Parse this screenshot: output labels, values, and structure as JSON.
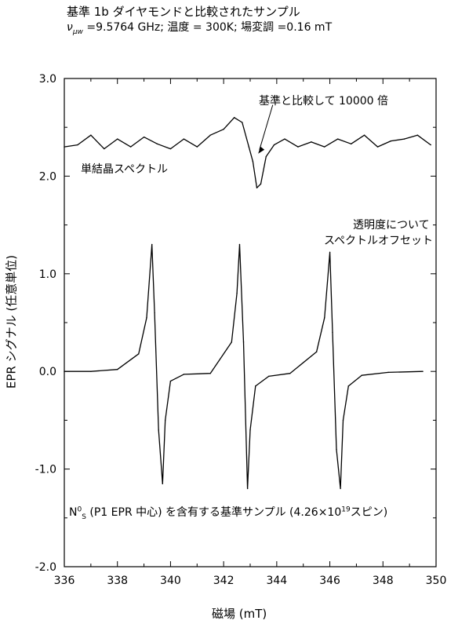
{
  "chart_data": {
    "type": "line",
    "title": "基準 1b ダイヤモンドと比較されたサンプル",
    "subtitle": "ν_μw =9.5764 GHz; 温度 = 300K; 場変調 =0.16 mT",
    "subtitle_symbol": "ν",
    "subtitle_sub": "μw",
    "subtitle_rest": " =9.5764 GHz; 温度 = 300K; 場変調 =0.16 mT",
    "xlabel": "磁場 (mT)",
    "ylabel": "EPR シグナル (任意単位)",
    "xlim": [
      336,
      350
    ],
    "ylim": [
      -2.0,
      3.0
    ],
    "x_ticks": [
      "336",
      "338",
      "340",
      "342",
      "344",
      "346",
      "348",
      "350"
    ],
    "y_ticks": [
      "3.0",
      "2.0",
      "1.0",
      "0.0",
      "-1.0",
      "-2.0"
    ],
    "grid": false,
    "annotations": {
      "compare": "基準と比較して 10000 倍",
      "single_crystal": "単結晶スペクトル",
      "offset_line1": "透明度について",
      "offset_line2": "スペクトルオフセット",
      "sample_prefix": "N",
      "sample_sup": "0",
      "sample_sub": "S",
      "sample_rest": " (P1 EPR 中心) を含有する基準サンプル (4.26×10",
      "sample_exp": "19",
      "sample_end": "スピン)"
    },
    "series": [
      {
        "role": "reference-P1",
        "baseline": 0.0,
        "x": [
          336.0,
          337.0,
          338.0,
          338.8,
          339.1,
          339.3,
          339.4,
          339.55,
          339.7,
          339.8,
          340.0,
          340.5,
          341.5,
          342.3,
          342.5,
          342.6,
          342.75,
          342.9,
          343.0,
          343.2,
          343.7,
          344.5,
          345.5,
          345.8,
          346.0,
          346.1,
          346.25,
          346.4,
          346.5,
          346.7,
          347.2,
          348.2,
          349.5
        ],
        "values": [
          0.0,
          0.0,
          0.02,
          0.18,
          0.55,
          1.3,
          0.6,
          -0.6,
          -1.15,
          -0.5,
          -0.1,
          -0.03,
          -0.02,
          0.3,
          0.8,
          1.3,
          0.3,
          -1.2,
          -0.6,
          -0.15,
          -0.05,
          -0.02,
          0.2,
          0.55,
          1.22,
          0.4,
          -0.8,
          -1.2,
          -0.5,
          -0.15,
          -0.04,
          -0.01,
          0.0
        ]
      },
      {
        "role": "single-crystal-x10000",
        "baseline": 2.3,
        "x": [
          336.0,
          336.5,
          337.0,
          337.5,
          338.0,
          338.5,
          339.0,
          339.5,
          340.0,
          340.5,
          341.0,
          341.5,
          342.0,
          342.4,
          342.7,
          342.95,
          343.1,
          343.25,
          343.4,
          343.6,
          343.9,
          344.3,
          344.8,
          345.3,
          345.8,
          346.3,
          346.8,
          347.3,
          347.8,
          348.3,
          348.8,
          349.3,
          349.8
        ],
        "values": [
          2.3,
          2.32,
          2.42,
          2.28,
          2.38,
          2.3,
          2.4,
          2.33,
          2.28,
          2.38,
          2.3,
          2.42,
          2.48,
          2.6,
          2.55,
          2.3,
          2.15,
          1.88,
          1.92,
          2.2,
          2.32,
          2.38,
          2.3,
          2.35,
          2.3,
          2.38,
          2.33,
          2.42,
          2.3,
          2.36,
          2.38,
          2.42,
          2.32
        ]
      }
    ]
  }
}
